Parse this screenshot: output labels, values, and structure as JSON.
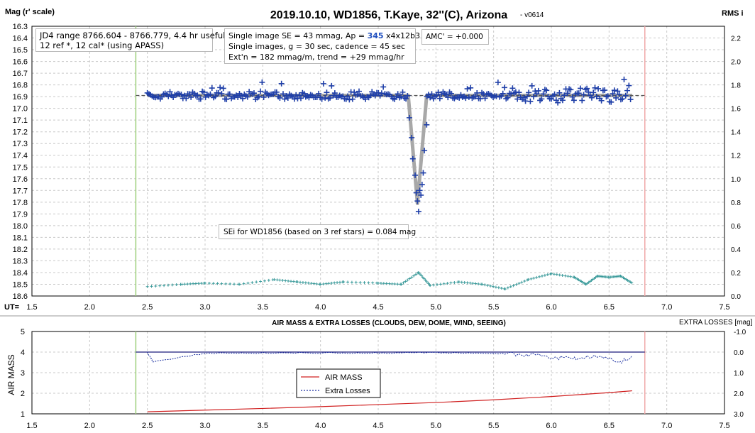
{
  "top_title": "2019.10.10, WD1856, T.Kaye, 32''(C), Arizona",
  "version": "- v0614",
  "top_ylabel_left": "Mag (r' scale)",
  "top_ylabel_right": "RMS i",
  "ut_label": "UT=",
  "info_box_1": {
    "line1": "JD4 range 8766.604 - 8766.779, 4.4 hr useful",
    "line2": "12 ref *, 12 cal* (using APASS)"
  },
  "info_box_2": {
    "line1_prefix": "Single image SE = 43 mmag, Ap = ",
    "line1_highlight": "345",
    "line1_suffix": " x4x12b3",
    "line2": "Single images, g = 30 sec, cadence = 45 sec",
    "line3": "Ext'n = 182 mmag/m, trend = +29 mmag/hr"
  },
  "amc_box": "AMC' = +0.000",
  "sei_box": "SEi for WD1856 (based on 3 ref stars) = 0.084 mag",
  "bottom_title": "AIR MASS & EXTRA LOSSES (CLOUDS, DEW, DOME, WIND, SEEING)",
  "bottom_right_label": "EXTRA LOSSES [mag]",
  "bottom_ylabel_left": "AIR MASS",
  "legend": [
    {
      "label": "AIR MASS",
      "color": "#d02020",
      "style": "solid"
    },
    {
      "label": "Extra Losses",
      "color": "#1a2fa0",
      "style": "dashed"
    }
  ],
  "colors": {
    "points": "#1f3fa8",
    "model": "#a8a8a8",
    "rms": "#3a9a9a",
    "airmass": "#d02020",
    "losses": "#1a2fa0",
    "start_line": "#9ccf7a",
    "end_line": "#f0a8a8",
    "grid": "#c8c8c8"
  },
  "chart_data": [
    {
      "type": "scatter",
      "title": "2019.10.10, WD1856, T.Kaye, 32''(C), Arizona",
      "xlabel": "UT=",
      "ylabel": "Mag (r' scale)",
      "ylabel_right": "RMS i",
      "xlim": [
        1.5,
        7.5
      ],
      "ylim": [
        16.3,
        18.6
      ],
      "y_reversed": true,
      "y2lim": [
        0.0,
        2.3
      ],
      "x_ticks": [
        "1.5",
        "2.0",
        "2.5",
        "3.0",
        "3.5",
        "4.0",
        "4.5",
        "5.0",
        "5.5",
        "6.0",
        "6.5",
        "7.0",
        "7.5"
      ],
      "y_ticks": [
        "16.3",
        "16.4",
        "16.5",
        "16.6",
        "16.7",
        "16.8",
        "16.9",
        "17.0",
        "17.1",
        "17.2",
        "17.3",
        "17.4",
        "17.5",
        "17.6",
        "17.7",
        "17.8",
        "17.9",
        "18.0",
        "18.1",
        "18.2",
        "18.3",
        "18.4",
        "18.5",
        "18.6"
      ],
      "y2_ticks": [
        "2.2",
        "2.0",
        "1.8",
        "1.6",
        "1.4",
        "1.2",
        "1.0",
        "0.8",
        "0.6",
        "0.4",
        "0.2",
        "0.0"
      ],
      "vlines": [
        2.4,
        6.81
      ],
      "baseline_mag": 16.89,
      "observation_range": [
        2.5,
        6.7
      ],
      "transit": {
        "start": 4.76,
        "min": 4.84,
        "end": 4.92,
        "depth_mag": 17.81
      },
      "transit_points": [
        [
          4.77,
          17.08
        ],
        [
          4.79,
          17.25
        ],
        [
          4.8,
          17.43
        ],
        [
          4.82,
          17.57
        ],
        [
          4.83,
          17.72
        ],
        [
          4.84,
          17.79
        ],
        [
          4.85,
          17.88
        ],
        [
          4.86,
          17.7
        ],
        [
          4.87,
          17.74
        ],
        [
          4.88,
          17.65
        ],
        [
          4.89,
          17.55
        ],
        [
          4.9,
          17.36
        ],
        [
          4.92,
          17.14
        ]
      ],
      "rms_series": [
        [
          2.5,
          0.08
        ],
        [
          2.8,
          0.1
        ],
        [
          3.0,
          0.11
        ],
        [
          3.3,
          0.1
        ],
        [
          3.6,
          0.14
        ],
        [
          3.8,
          0.12
        ],
        [
          4.0,
          0.1
        ],
        [
          4.2,
          0.12
        ],
        [
          4.5,
          0.11
        ],
        [
          4.7,
          0.1
        ],
        [
          4.85,
          0.2
        ],
        [
          4.95,
          0.09
        ],
        [
          5.2,
          0.12
        ],
        [
          5.4,
          0.1
        ],
        [
          5.6,
          0.06
        ],
        [
          5.8,
          0.14
        ],
        [
          6.0,
          0.19
        ],
        [
          6.2,
          0.16
        ],
        [
          6.3,
          0.1
        ],
        [
          6.4,
          0.17
        ],
        [
          6.5,
          0.16
        ],
        [
          6.6,
          0.17
        ],
        [
          6.7,
          0.11
        ]
      ]
    },
    {
      "type": "line",
      "title": "AIR MASS & EXTRA LOSSES (CLOUDS, DEW, DOME, WIND, SEEING)",
      "xlabel": "",
      "ylabel": "AIR MASS",
      "ylabel_right": "EXTRA LOSSES [mag]",
      "xlim": [
        1.5,
        7.5
      ],
      "ylim": [
        1,
        5
      ],
      "y2lim": [
        3.0,
        -1.0
      ],
      "x_ticks": [
        "1.5",
        "2.0",
        "2.5",
        "3.0",
        "3.5",
        "4.0",
        "4.5",
        "5.0",
        "5.5",
        "6.0",
        "6.5",
        "7.0",
        "7.5"
      ],
      "y_ticks": [
        "5",
        "4",
        "3",
        "2",
        "1"
      ],
      "y2_ticks": [
        "-1.0",
        "0.0",
        "1.0",
        "2.0",
        "3.0"
      ],
      "vlines": [
        2.4,
        6.81
      ],
      "series": [
        {
          "name": "AIR MASS",
          "points": [
            [
              2.5,
              1.1
            ],
            [
              3.0,
              1.18
            ],
            [
              3.5,
              1.26
            ],
            [
              4.0,
              1.35
            ],
            [
              4.5,
              1.45
            ],
            [
              5.0,
              1.55
            ],
            [
              5.5,
              1.68
            ],
            [
              6.0,
              1.84
            ],
            [
              6.5,
              2.03
            ],
            [
              6.7,
              2.12
            ]
          ]
        },
        {
          "name": "Extra Losses",
          "points": [
            [
              2.5,
              0.02
            ],
            [
              2.55,
              0.45
            ],
            [
              3.0,
              0.05
            ],
            [
              3.5,
              0.04
            ],
            [
              4.0,
              0.03
            ],
            [
              4.5,
              0.04
            ],
            [
              5.0,
              0.02
            ],
            [
              5.5,
              0.05
            ],
            [
              5.8,
              0.1
            ],
            [
              6.0,
              0.25
            ],
            [
              6.2,
              0.3
            ],
            [
              6.4,
              0.2
            ],
            [
              6.6,
              0.45
            ],
            [
              6.7,
              0.2
            ]
          ]
        }
      ]
    }
  ]
}
